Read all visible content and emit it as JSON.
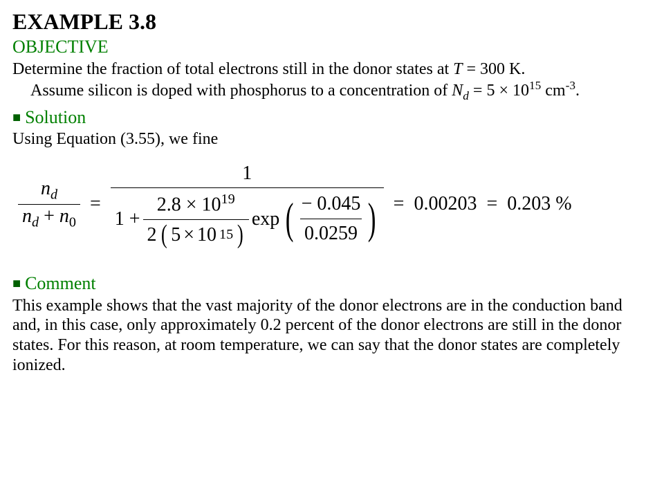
{
  "title": "EXAMPLE 3.8",
  "objective": {
    "heading": "OBJECTIVE",
    "line1_a": "Determine the fraction of total electrons still in the donor states at ",
    "T_var": "T",
    "line1_b": " = 300 K.",
    "line2_a": "Assume silicon is doped with phosphorus to a concentration of  ",
    "Nd_var": "N",
    "Nd_sub": "d",
    "line2_b": " = 5 ",
    "times": "×",
    "line2_c": " 10",
    "exp15": "15",
    "line2_d": " cm",
    "neg3": "-3",
    "line2_e": "."
  },
  "solution": {
    "heading": "Solution",
    "intro": "Using Equation (3.55), we fine"
  },
  "equation": {
    "lhs_num_a": "n",
    "lhs_num_sub": "d",
    "lhs_den_a": "n",
    "lhs_den_sub1": "d",
    "lhs_den_plus": " + ",
    "lhs_den_b": "n",
    "lhs_den_sub2": "0",
    "eq": "=",
    "rhs_num": "1",
    "one_plus": "1 + ",
    "coef_num_a": "2.8",
    "coef_num_times": "×",
    "coef_num_b": "10",
    "coef_num_exp": "19",
    "coef_den_a": "2",
    "coef_den_b": "5",
    "coef_den_times": "×",
    "coef_den_c": "10",
    "coef_den_exp": "15",
    "exp_label": "exp",
    "exp_num": "− 0.045",
    "exp_den": "0.0259",
    "result1_eq": "=",
    "result1": "0.00203",
    "result2_eq": "=",
    "result2": "0.203 %"
  },
  "comment": {
    "heading": "Comment",
    "text": "This example shows that the vast majority of the donor electrons are in the conduction band and, in this case, only approximately 0.2 percent of the donor electrons are still in the donor states. For this reason, at room temperature, we can say that the donor states are completely ionized."
  }
}
